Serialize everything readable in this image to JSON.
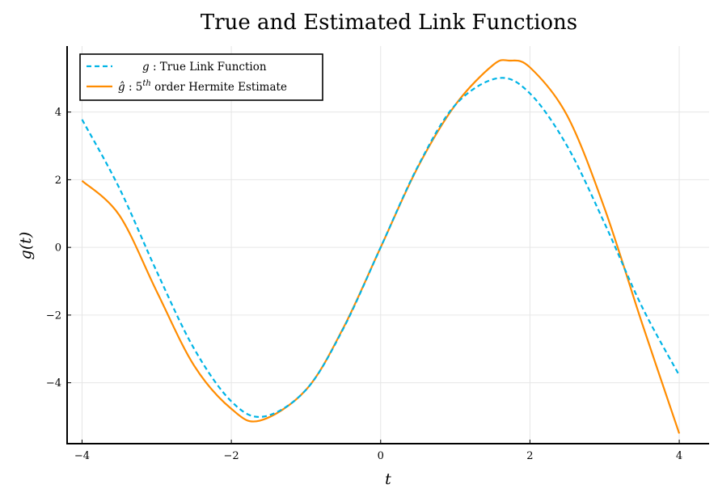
{
  "chart_data": {
    "type": "line",
    "title": "True and Estimated Link Functions",
    "xlabel": "t",
    "ylabel": "g(t)",
    "xlim": [
      -4.2,
      4.4
    ],
    "ylim": [
      -5.8,
      5.95
    ],
    "xticks": [
      -4,
      -2,
      0,
      2,
      4
    ],
    "yticks": [
      -4,
      -2,
      0,
      2,
      4
    ],
    "xtick_labels": [
      "−4",
      "−2",
      "0",
      "2",
      "4"
    ],
    "ytick_labels": [
      "−4",
      "−2",
      "0",
      "2",
      "4"
    ],
    "grid": true,
    "legend_position": "top-left",
    "legend": [
      {
        "symbol": "g",
        "text": " :  True Link Function",
        "series": 0
      },
      {
        "symbol": "ĝ",
        "text": " :  5",
        "sup": "th",
        "text2": " order Hermite Estimate",
        "series": 1
      }
    ],
    "series": [
      {
        "name": "g : True Link Function",
        "color": "#00b4e6",
        "style": "dashed",
        "x": [
          -4.0,
          -3.5,
          -3.0,
          -2.5,
          -2.0,
          -1.57,
          -1.0,
          -0.5,
          0.0,
          0.5,
          1.0,
          1.57,
          2.0,
          2.5,
          3.0,
          3.5,
          4.0
        ],
        "y": [
          3.78,
          1.75,
          -0.71,
          -2.99,
          -4.55,
          -5.0,
          -4.21,
          -2.4,
          0.0,
          2.4,
          4.21,
          5.0,
          4.55,
          2.99,
          0.71,
          -1.75,
          -3.78
        ]
      },
      {
        "name": "ĝ : 5th order Hermite Estimate",
        "color": "#ff8c00",
        "style": "solid",
        "x": [
          -4.0,
          -3.5,
          -3.0,
          -2.5,
          -2.0,
          -1.62,
          -1.0,
          -0.5,
          0.0,
          0.5,
          1.0,
          1.5,
          1.72,
          2.0,
          2.5,
          3.0,
          3.5,
          4.0
        ],
        "y": [
          1.97,
          0.95,
          -1.3,
          -3.49,
          -4.77,
          -5.12,
          -4.21,
          -2.38,
          0.0,
          2.38,
          4.21,
          5.38,
          5.52,
          5.32,
          3.89,
          1.15,
          -2.23,
          -5.5
        ]
      }
    ]
  }
}
